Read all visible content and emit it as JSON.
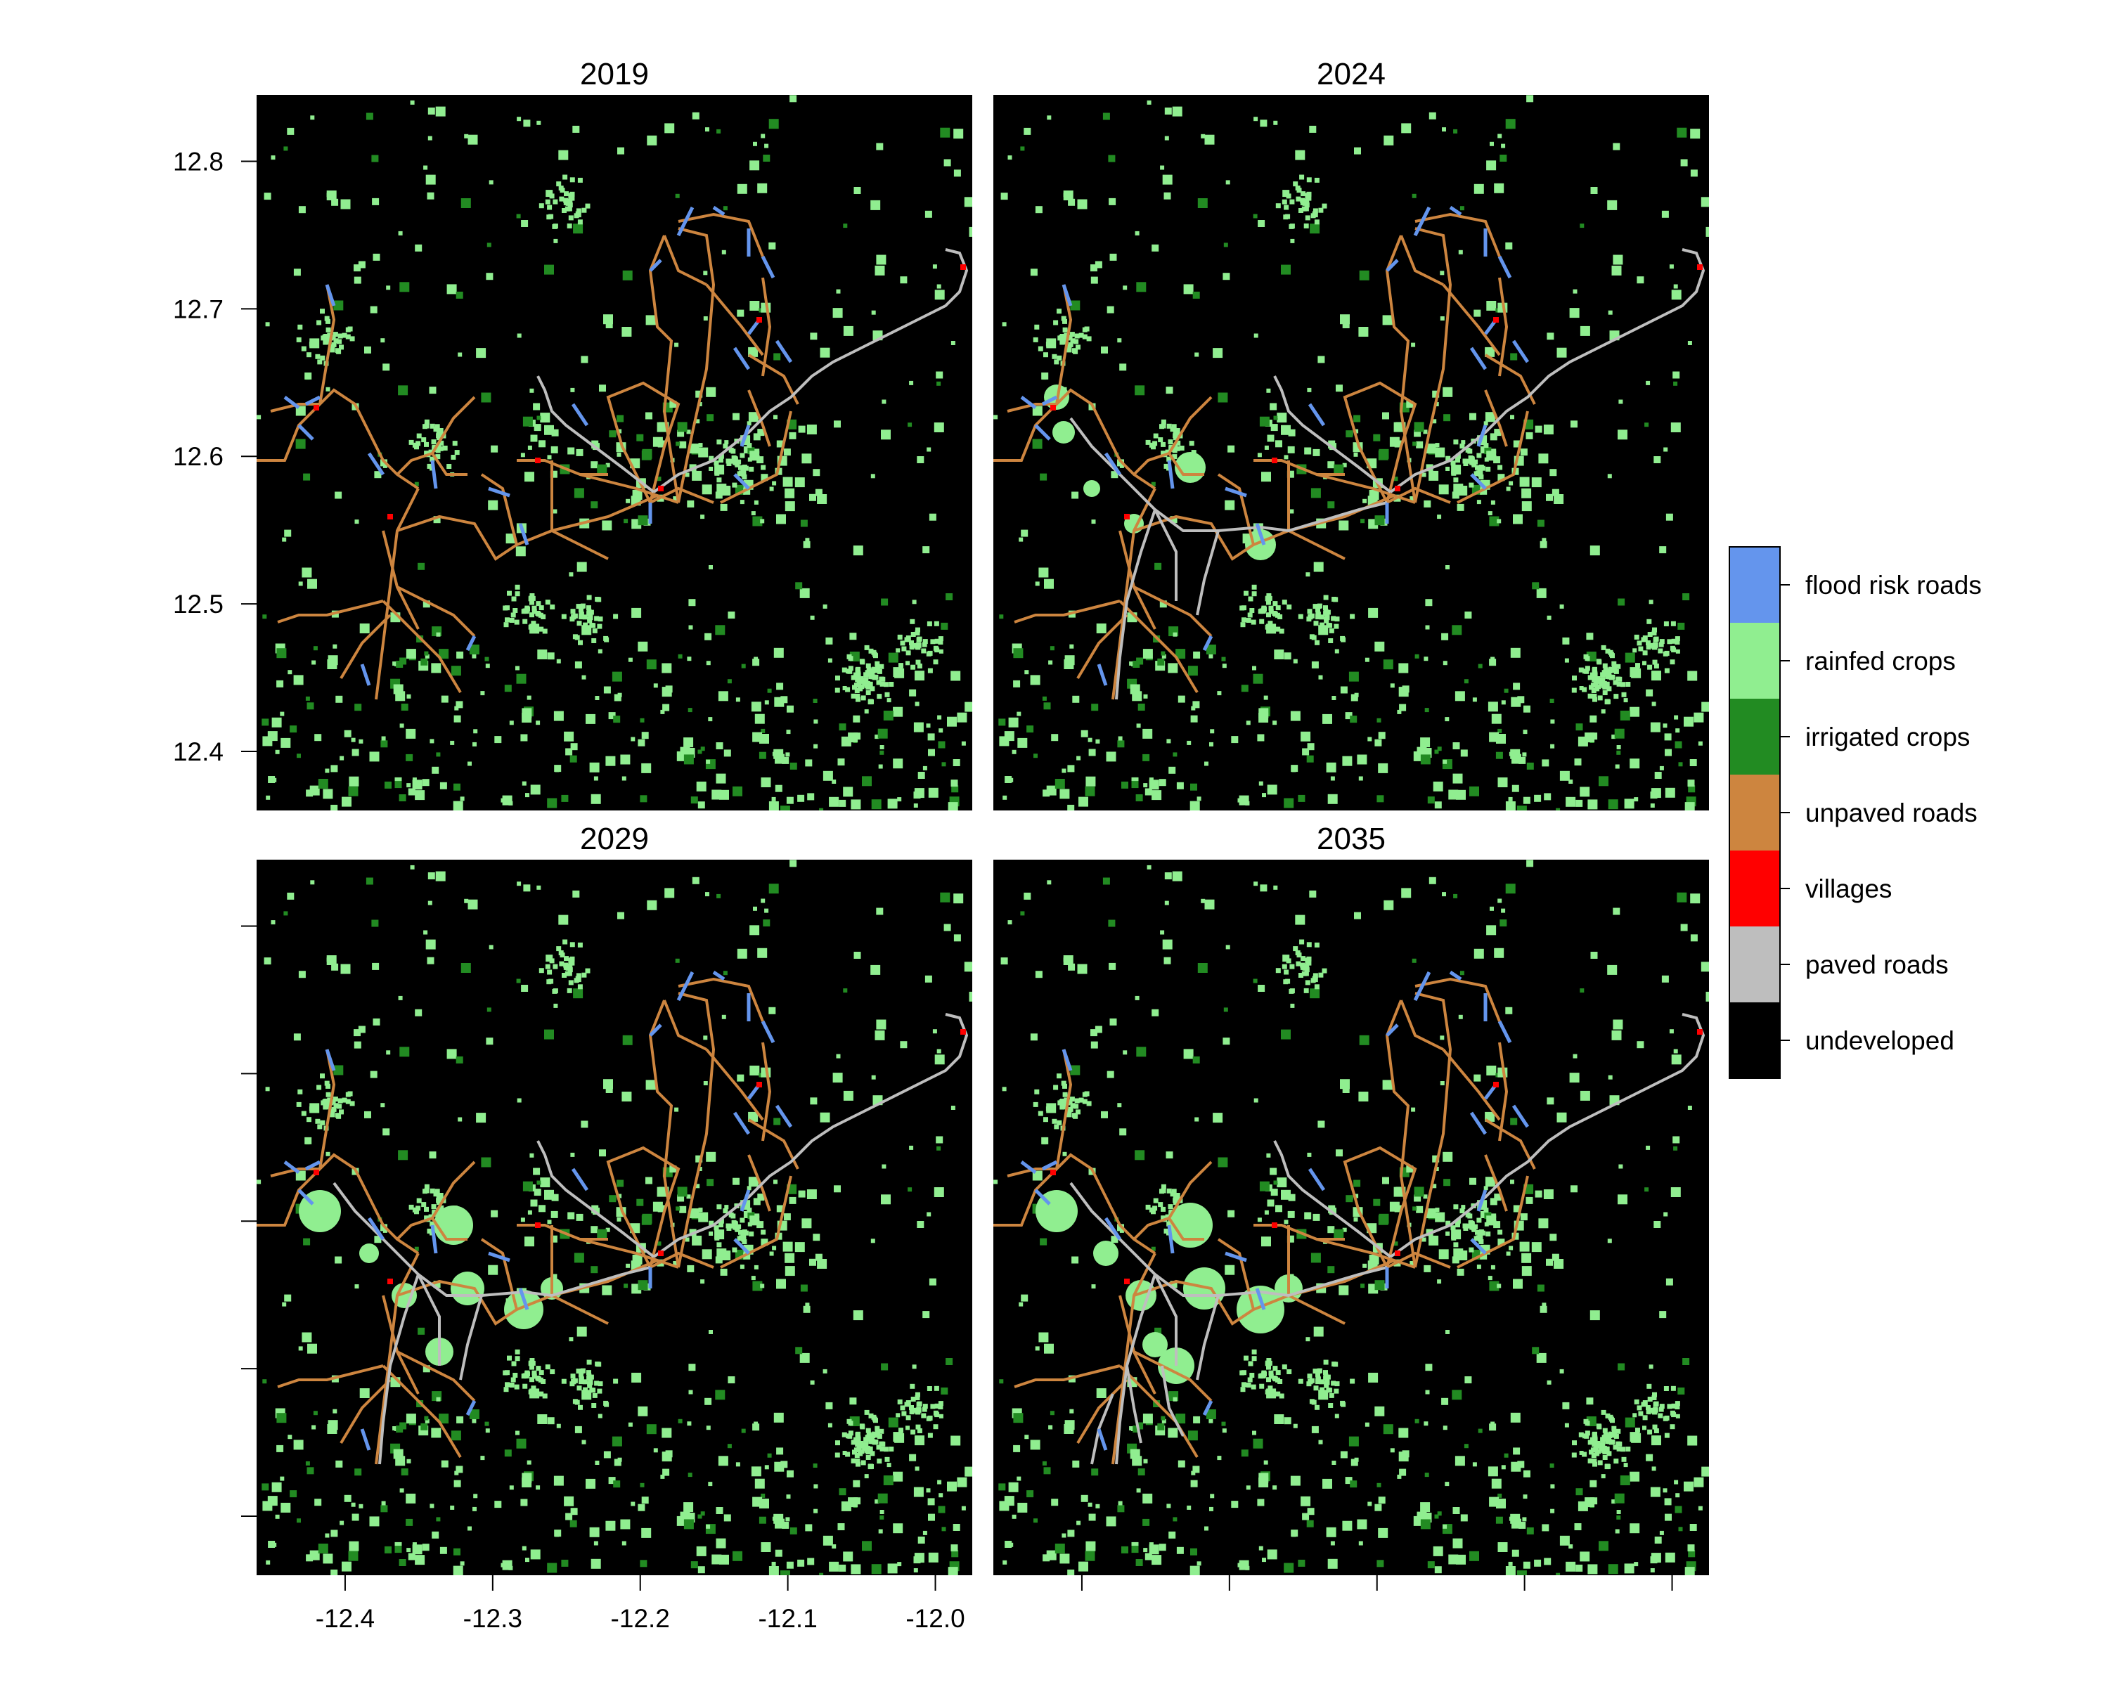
{
  "panels": [
    {
      "title": "2019"
    },
    {
      "title": "2024"
    },
    {
      "title": "2029"
    },
    {
      "title": "2035"
    }
  ],
  "x_axis": {
    "ticks": [
      -12.4,
      -12.3,
      -12.2,
      -12.1,
      -12.0
    ],
    "labels": [
      "-12.4",
      "-12.3",
      "-12.2",
      "-12.1",
      "-12.0"
    ],
    "range": [
      -12.46,
      -11.975
    ]
  },
  "y_axis": {
    "ticks": [
      12.4,
      12.5,
      12.6,
      12.7,
      12.8
    ],
    "labels": [
      "12.4",
      "12.5",
      "12.6",
      "12.7",
      "12.8"
    ],
    "range": [
      12.36,
      12.845
    ]
  },
  "legend": [
    {
      "label": "flood risk roads",
      "color": "#6495ED"
    },
    {
      "label": "rainfed crops",
      "color": "#90EE90"
    },
    {
      "label": "irrigated crops",
      "color": "#228B22"
    },
    {
      "label": "unpaved roads",
      "color": "#CD853F"
    },
    {
      "label": "villages",
      "color": "#FF0000"
    },
    {
      "label": "paved roads",
      "color": "#BEBEBE"
    },
    {
      "label": "undeveloped",
      "color": "#000000"
    }
  ]
}
